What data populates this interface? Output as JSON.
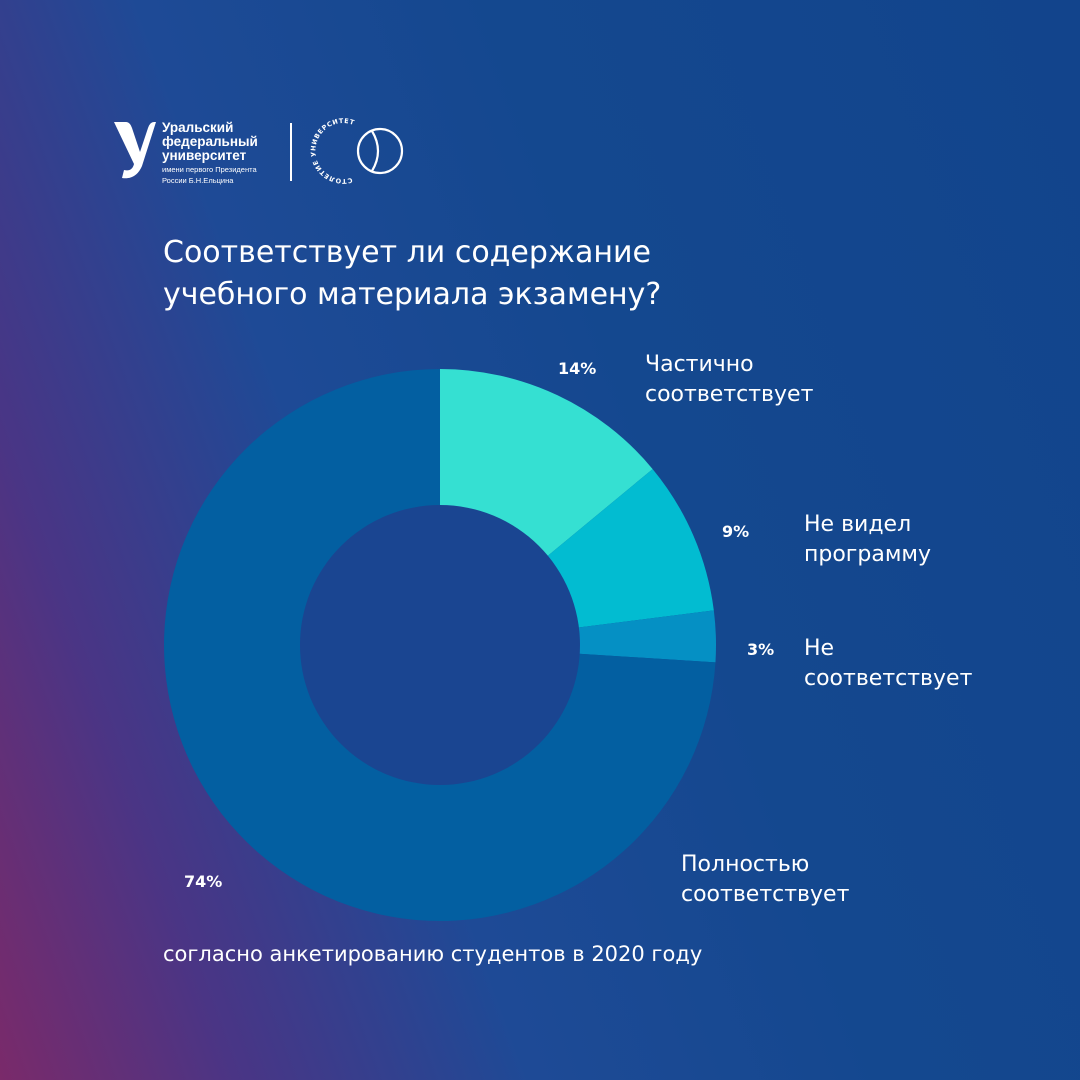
{
  "logo": {
    "name_lines": [
      "Уральский",
      "федеральный",
      "университет"
    ],
    "sub_lines": [
      "имени первого Президента",
      "России Б.Н.Ельцина"
    ],
    "century_text": "СТОЛЕТИЕ УНИВЕРСИТЕТА"
  },
  "title_lines": [
    "Соответствует ли содержание",
    "учебного материала экзамену?"
  ],
  "footnote": "согласно анкетированию студентов в 2020 году",
  "chart_data": {
    "type": "pie",
    "donut": true,
    "title": "Соответствует ли содержание учебного материала экзамену?",
    "series": [
      {
        "label": "Частично соответствует",
        "label_lines": [
          "Частично",
          "соответствует"
        ],
        "value": 14,
        "display": "14%",
        "color": "#35e0d2"
      },
      {
        "label": "Не видел программу",
        "label_lines": [
          "Не видел",
          "программу"
        ],
        "value": 9,
        "display": "9%",
        "color": "#02bcd1"
      },
      {
        "label": "Не соответствует",
        "label_lines": [
          "Не",
          "соответствует"
        ],
        "value": 3,
        "display": "3%",
        "color": "#0590c4"
      },
      {
        "label": "Полностью соответствует",
        "label_lines": [
          "Полностью",
          "соответствует"
        ],
        "value": 74,
        "display": "74%",
        "color": "#035fa1"
      }
    ],
    "center_color": "#1a4591",
    "legend": "labels beside slices"
  }
}
